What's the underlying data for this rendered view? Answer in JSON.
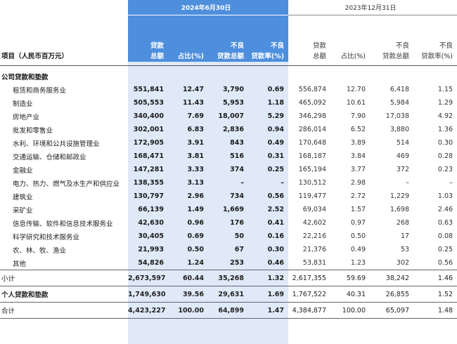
{
  "header": {
    "group_current": "2024年6月30日",
    "group_previous": "2023年12月31日",
    "col_item": "项目（人民币百万元）",
    "col_loan_total": [
      "贷款",
      "总额"
    ],
    "col_share": [
      "占比(%)"
    ],
    "col_npl_total": [
      "不良",
      "贷款总额"
    ],
    "col_npl_ratio": [
      "不良",
      "贷款率(%)"
    ]
  },
  "section_corporate": "公司贷款和垫款",
  "rows": [
    {
      "name": "租赁和商务服务业",
      "c": [
        "551,841",
        "12.47",
        "3,790",
        "0.69"
      ],
      "p": [
        "556,874",
        "12.70",
        "6,418",
        "1.15"
      ]
    },
    {
      "name": "制造业",
      "c": [
        "505,553",
        "11.43",
        "5,953",
        "1.18"
      ],
      "p": [
        "465,092",
        "10.61",
        "5,984",
        "1.29"
      ]
    },
    {
      "name": "房地产业",
      "c": [
        "340,400",
        "7.69",
        "18,007",
        "5.29"
      ],
      "p": [
        "346,298",
        "7.90",
        "17,038",
        "4.92"
      ]
    },
    {
      "name": "批发和零售业",
      "c": [
        "302,001",
        "6.83",
        "2,836",
        "0.94"
      ],
      "p": [
        "286,014",
        "6.52",
        "3,880",
        "1.36"
      ]
    },
    {
      "name": "水利、环境和公共设施管理业",
      "c": [
        "172,905",
        "3.91",
        "843",
        "0.49"
      ],
      "p": [
        "170,648",
        "3.89",
        "514",
        "0.30"
      ]
    },
    {
      "name": "交通运输、仓储和邮政业",
      "c": [
        "168,471",
        "3.81",
        "516",
        "0.31"
      ],
      "p": [
        "168,187",
        "3.84",
        "469",
        "0.28"
      ]
    },
    {
      "name": "金融业",
      "c": [
        "147,281",
        "3.33",
        "374",
        "0.25"
      ],
      "p": [
        "165,194",
        "3.77",
        "372",
        "0.23"
      ]
    },
    {
      "name": "电力、热力、燃气及水生产和供应业",
      "c": [
        "138,355",
        "3.13",
        "–",
        "–"
      ],
      "p": [
        "130,512",
        "2.98",
        "–",
        "–"
      ]
    },
    {
      "name": "建筑业",
      "c": [
        "130,797",
        "2.96",
        "734",
        "0.56"
      ],
      "p": [
        "119,477",
        "2.72",
        "1,229",
        "1.03"
      ]
    },
    {
      "name": "采矿业",
      "c": [
        "66,139",
        "1.49",
        "1,669",
        "2.52"
      ],
      "p": [
        "69,034",
        "1.57",
        "1,698",
        "2.46"
      ]
    },
    {
      "name": "信息传输、软件和信息技术服务业",
      "c": [
        "42,630",
        "0.96",
        "176",
        "0.41"
      ],
      "p": [
        "42,602",
        "0.97",
        "268",
        "0.63"
      ]
    },
    {
      "name": "科学研究和技术服务业",
      "c": [
        "30,405",
        "0.69",
        "50",
        "0.16"
      ],
      "p": [
        "22,216",
        "0.50",
        "17",
        "0.08"
      ]
    },
    {
      "name": "农、林、牧、渔业",
      "c": [
        "21,993",
        "0.50",
        "67",
        "0.30"
      ],
      "p": [
        "21,376",
        "0.49",
        "53",
        "0.25"
      ]
    },
    {
      "name": "其他",
      "c": [
        "54,826",
        "1.24",
        "253",
        "0.46"
      ],
      "p": [
        "53,831",
        "1.23",
        "302",
        "0.56"
      ]
    }
  ],
  "subtotal": {
    "name": "小计",
    "c": [
      "2,673,597",
      "60.44",
      "35,268",
      "1.32"
    ],
    "p": [
      "2,617,355",
      "59.69",
      "38,242",
      "1.46"
    ]
  },
  "personal": {
    "name": "个人贷款和垫款",
    "c": [
      "1,749,630",
      "39.56",
      "29,631",
      "1.69"
    ],
    "p": [
      "1,767,522",
      "40.31",
      "26,855",
      "1.52"
    ]
  },
  "total": {
    "name": "合计",
    "c": [
      "4,423,227",
      "100.00",
      "64,899",
      "1.47"
    ],
    "p": [
      "4,384,877",
      "100.00",
      "65,097",
      "1.48"
    ]
  }
}
